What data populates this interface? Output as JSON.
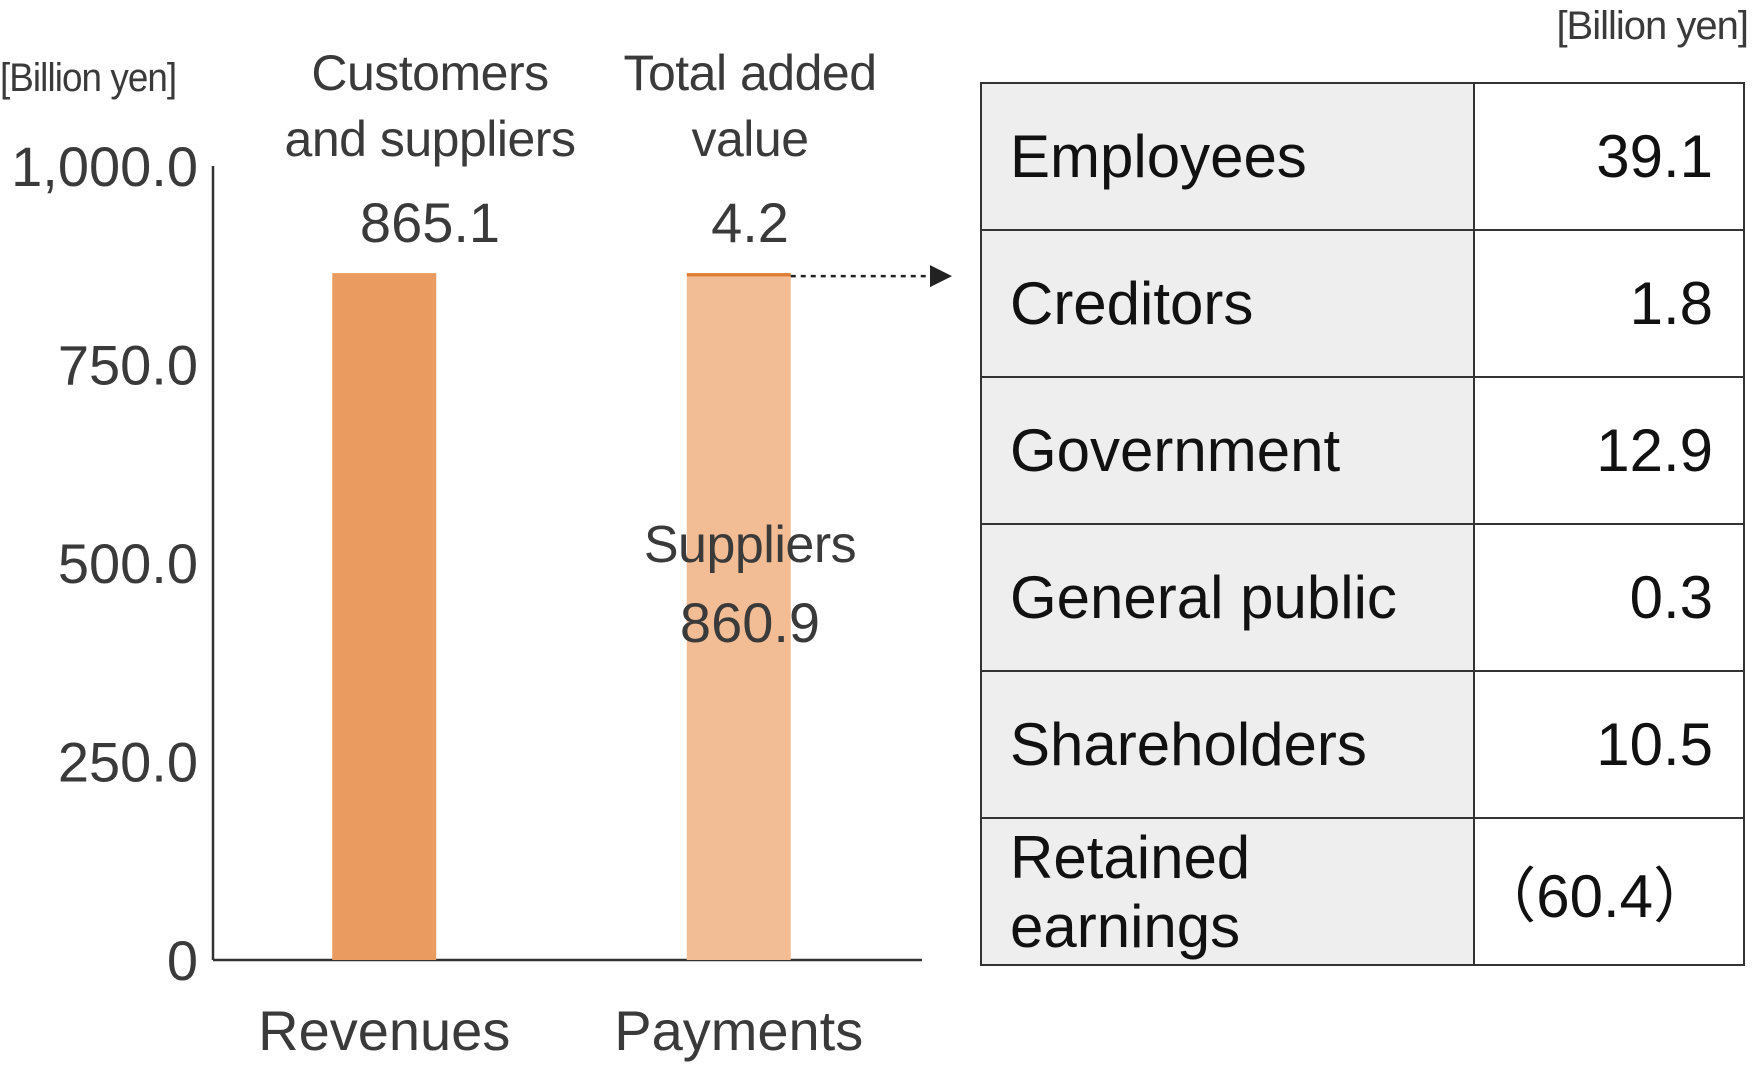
{
  "chart_data": [
    {
      "type": "bar",
      "stacked": true,
      "ylabel": "[Billion yen]",
      "ylim": [
        0,
        1000
      ],
      "y_ticks": [
        "0",
        "250.0",
        "500.0",
        "750.0",
        "1,000.0"
      ],
      "categories": [
        "Revenues",
        "Payments"
      ],
      "series": [
        {
          "name": "Customers and suppliers",
          "values": [
            865.1,
            0
          ],
          "color": "#ea9c60"
        },
        {
          "name": "Suppliers",
          "values": [
            0,
            860.9
          ],
          "color": "#f2bc94"
        },
        {
          "name": "Total added value",
          "values": [
            0,
            4.2
          ],
          "color": "#e07b35"
        }
      ],
      "column_headers": [
        "Customers\nand suppliers",
        "Total added\nvalue"
      ],
      "value_labels": [
        "865.1",
        "4.2"
      ],
      "inner_label": {
        "name": "Suppliers",
        "value": "860.9"
      },
      "grid": false
    },
    {
      "type": "table",
      "unit": "[Billion yen]",
      "rows": [
        {
          "label": "Employees",
          "value": "39.1"
        },
        {
          "label": "Creditors",
          "value": "1.8"
        },
        {
          "label": "Government",
          "value": "12.9"
        },
        {
          "label": "General public",
          "value": "0.3"
        },
        {
          "label": "Shareholders",
          "value": "10.5"
        },
        {
          "label": "Retained earnings",
          "value": "（60.4）"
        }
      ]
    }
  ]
}
